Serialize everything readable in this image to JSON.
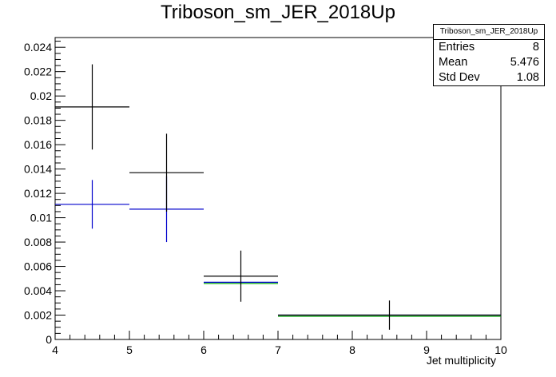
{
  "chart_data": {
    "type": "histogram",
    "title": "Triboson_sm_JER_2018Up",
    "xlabel": "Jet multiplicity",
    "ylabel": "",
    "xlim": [
      4,
      10
    ],
    "ylim": [
      0,
      0.0248
    ],
    "x_ticks": [
      "4",
      "5",
      "6",
      "7",
      "8",
      "9",
      "10"
    ],
    "y_ticks": [
      "0",
      "0.002",
      "0.004",
      "0.006",
      "0.008",
      "0.01",
      "0.012",
      "0.014",
      "0.016",
      "0.018",
      "0.02",
      "0.022",
      "0.024"
    ],
    "series": [
      {
        "color": "#000000",
        "bins": [
          {
            "low": 4,
            "high": 5,
            "value": 0.0191,
            "err": 0.0035
          },
          {
            "low": 5,
            "high": 6,
            "value": 0.0137,
            "err": 0.0032
          },
          {
            "low": 6,
            "high": 7,
            "value": 0.0052,
            "err": 0.0021
          },
          {
            "low": 7,
            "high": 10,
            "value": 0.002,
            "err": 0.0012
          }
        ]
      },
      {
        "color": "#0000cc",
        "bins": [
          {
            "low": 4,
            "high": 5,
            "value": 0.0111,
            "err": 0.002
          },
          {
            "low": 5,
            "high": 6,
            "value": 0.0107,
            "err": 0.0027
          },
          {
            "low": 6,
            "high": 7,
            "value": 0.0047,
            "err": 0.0
          },
          {
            "low": 7,
            "high": 10,
            "value": 0.002,
            "err": 0.0
          }
        ]
      },
      {
        "color": "#00aa00",
        "bins": [
          {
            "low": 6,
            "high": 7,
            "value": 0.0046,
            "err": 0.0
          },
          {
            "low": 7,
            "high": 10,
            "value": 0.0019,
            "err": 0.0
          }
        ]
      }
    ],
    "stats": {
      "name": "Triboson_sm_JER_2018Up",
      "entries_label": "Entries",
      "entries": "8",
      "mean_label": "Mean",
      "mean": "5.476",
      "std_label": "Std Dev",
      "std": "1.08"
    }
  }
}
